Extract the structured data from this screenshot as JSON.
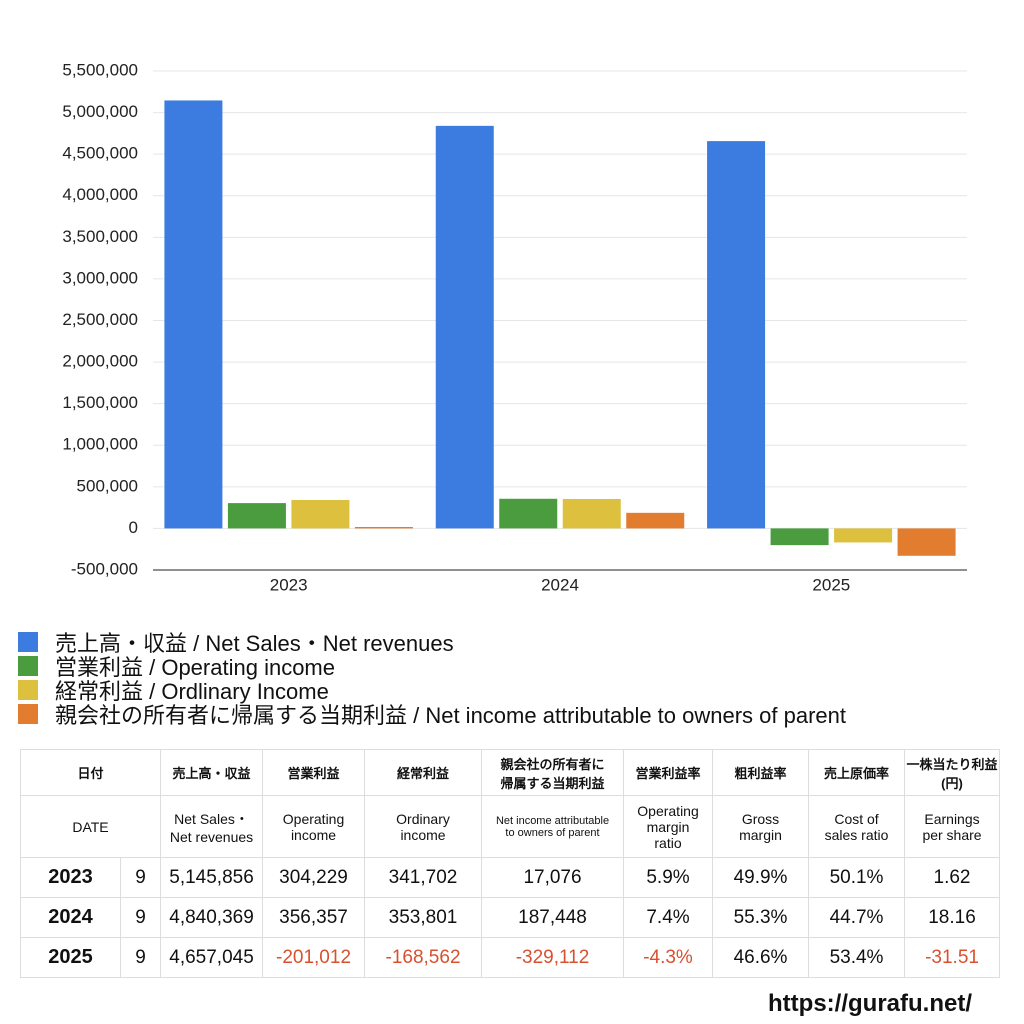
{
  "chart_data": {
    "type": "bar",
    "categories": [
      "2023",
      "2024",
      "2025"
    ],
    "series": [
      {
        "name": "売上高・収益 / Net Sales・Net revenues",
        "color": "#3c7be0",
        "values": [
          5145856,
          4840369,
          4657045
        ]
      },
      {
        "name": "営業利益 / Operating income",
        "color": "#4a9c3f",
        "values": [
          304229,
          356357,
          -201012
        ]
      },
      {
        "name": "経常利益 / Ordlinary Income",
        "color": "#dcc03e",
        "values": [
          341702,
          353801,
          -168562
        ]
      },
      {
        "name": "親会社の所有者に帰属する当期利益 / Net income attributable to owners of parent",
        "color": "#e27c2e",
        "values": [
          17076,
          187448,
          -329112
        ]
      }
    ],
    "ylim": [
      -500000,
      5500000
    ],
    "yticks": [
      {
        "value": -500000,
        "label": "-500,000"
      },
      0,
      {
        "value": 500000,
        "label": "500,000"
      },
      {
        "value": 1000000,
        "label": "1,000,000"
      },
      {
        "value": 1500000,
        "label": "1,500,000"
      },
      {
        "value": 2000000,
        "label": "2,000,000"
      },
      {
        "value": 2500000,
        "label": "2,500,000"
      },
      {
        "value": 3000000,
        "label": "3,000,000"
      },
      {
        "value": 3500000,
        "label": "3,500,000"
      },
      {
        "value": 4000000,
        "label": "4,000,000"
      },
      {
        "value": 4500000,
        "label": "4,500,000"
      },
      {
        "value": 5000000,
        "label": "5,000,000"
      },
      {
        "value": 5500000,
        "label": "5,500,000"
      }
    ],
    "grid": true
  },
  "table": {
    "header1": [
      "日付",
      "売上高・収益",
      "営業利益",
      "経常利益",
      "親会社の所有者に\n帰属する当期利益",
      "営業利益率",
      "粗利益率",
      "売上原価率",
      "一株当たり利益\n(円)"
    ],
    "header2": [
      "DATE",
      "Net Sales・\nNet revenues",
      "Operating\nincome",
      "Ordinary\nincome",
      "Net income attributable\nto owners of parent",
      "Operating\nmargin\nratio",
      "Gross\nmargin",
      "Cost of\nsales ratio",
      "Earnings\nper share"
    ],
    "rows": [
      [
        "2023",
        "9",
        "5,145,856",
        "304,229",
        "341,702",
        "17,076",
        "5.9%",
        "49.9%",
        "50.1%",
        "1.62"
      ],
      [
        "2024",
        "9",
        "4,840,369",
        "356,357",
        "353,801",
        "187,448",
        "7.4%",
        "55.3%",
        "44.7%",
        "18.16"
      ],
      [
        "2025",
        "9",
        "4,657,045",
        "-201,012",
        "-168,562",
        "-329,112",
        "-4.3%",
        "46.6%",
        "53.4%",
        "-31.51"
      ]
    ]
  },
  "footer": "https://gurafu.net/"
}
